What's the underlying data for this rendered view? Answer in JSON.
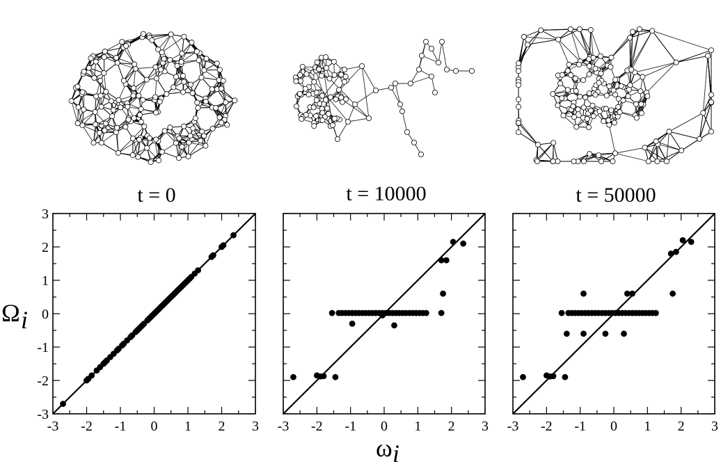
{
  "panels": [
    {
      "title": "t = 0"
    },
    {
      "title": "t = 10000"
    },
    {
      "title": "t = 50000"
    }
  ],
  "axes": {
    "xlabel": "ω_i",
    "ylabel": "Ω_i",
    "xticks": [
      "-3",
      "-2",
      "-1",
      "0",
      "1",
      "2",
      "3"
    ],
    "yticks": [
      "-3",
      "-2",
      "-1",
      "0",
      "1",
      "2",
      "3"
    ]
  },
  "colors": {
    "marker": "#000000",
    "node_fill": "#ffffff",
    "edge": "#000000",
    "background": "#ffffff"
  },
  "chart_data": [
    {
      "type": "scatter",
      "title": "t = 0",
      "xlabel": "ω_i",
      "ylabel": "Ω_i",
      "xlim": [
        -3,
        3
      ],
      "ylim": [
        -3,
        3
      ],
      "grid": false,
      "diagonal": "y = x",
      "series": [
        {
          "x": [
            -2.7,
            -2.0,
            -1.95,
            -1.85,
            -1.7,
            -1.6,
            -1.5,
            -1.45,
            -1.4,
            -1.3,
            -1.2,
            -1.1,
            -1.05,
            -0.95,
            -0.9,
            -0.8,
            -0.7,
            -0.65,
            -0.55,
            -0.5,
            -0.45,
            -0.4,
            -0.35,
            -0.3,
            -0.2,
            -0.15,
            -0.1,
            -0.05,
            0.0,
            0.05,
            0.1,
            0.15,
            0.2,
            0.25,
            0.3,
            0.35,
            0.4,
            0.45,
            0.5,
            0.55,
            0.6,
            0.65,
            0.7,
            0.75,
            0.8,
            0.85,
            0.9,
            0.95,
            1.0,
            1.05,
            1.1,
            1.2,
            1.3,
            1.7,
            1.75,
            2.0,
            2.05,
            2.35
          ],
          "y": [
            -2.7,
            -2.0,
            -1.95,
            -1.85,
            -1.7,
            -1.6,
            -1.5,
            -1.45,
            -1.4,
            -1.3,
            -1.2,
            -1.1,
            -1.05,
            -0.95,
            -0.9,
            -0.8,
            -0.7,
            -0.65,
            -0.55,
            -0.5,
            -0.45,
            -0.4,
            -0.35,
            -0.3,
            -0.2,
            -0.15,
            -0.1,
            -0.05,
            0.0,
            0.05,
            0.1,
            0.15,
            0.2,
            0.25,
            0.3,
            0.35,
            0.4,
            0.45,
            0.5,
            0.55,
            0.6,
            0.65,
            0.7,
            0.75,
            0.8,
            0.85,
            0.9,
            0.95,
            1.0,
            1.05,
            1.1,
            1.2,
            1.3,
            1.7,
            1.75,
            2.0,
            2.05,
            2.35
          ]
        }
      ]
    },
    {
      "type": "scatter",
      "title": "t = 10000",
      "xlabel": "ω_i",
      "ylabel": "Ω_i",
      "xlim": [
        -3,
        3
      ],
      "ylim": [
        -3,
        3
      ],
      "grid": false,
      "diagonal": "y = x",
      "series": [
        {
          "x": [
            -2.7,
            -2.0,
            -1.9,
            -1.8,
            -1.45,
            -1.55,
            -1.35,
            -1.25,
            -1.15,
            -1.05,
            -0.95,
            -0.85,
            -0.75,
            -0.65,
            -0.55,
            -0.45,
            -0.35,
            -0.25,
            -0.15,
            -0.05,
            0.05,
            0.15,
            0.25,
            0.35,
            0.45,
            0.55,
            0.65,
            0.75,
            0.85,
            0.95,
            1.05,
            1.15,
            1.25,
            -0.95,
            0.3,
            -0.05,
            1.7,
            1.75,
            1.85,
            1.7,
            2.05,
            2.35
          ],
          "y": [
            -1.9,
            -1.85,
            -1.88,
            -1.87,
            -1.9,
            0.02,
            0.02,
            0.02,
            0.02,
            0.02,
            0.02,
            0.02,
            0.02,
            0.02,
            0.02,
            0.02,
            0.02,
            0.02,
            0.02,
            0.02,
            0.02,
            0.02,
            0.02,
            0.02,
            0.02,
            0.02,
            0.02,
            0.02,
            0.02,
            0.02,
            0.02,
            0.02,
            0.02,
            -0.3,
            -0.35,
            -0.05,
            1.6,
            0.6,
            1.6,
            0.02,
            2.15,
            2.1
          ]
        }
      ]
    },
    {
      "type": "scatter",
      "title": "t = 50000",
      "xlabel": "ω_i",
      "ylabel": "Ω_i",
      "xlim": [
        -3,
        3
      ],
      "ylim": [
        -3,
        3
      ],
      "grid": false,
      "diagonal": "y = x",
      "series": [
        {
          "x": [
            -2.7,
            -2.0,
            -1.9,
            -1.8,
            -1.45,
            -1.55,
            -1.35,
            -1.25,
            -1.15,
            -1.05,
            -0.95,
            -0.85,
            -0.75,
            -0.65,
            -0.55,
            -0.45,
            -0.35,
            -0.25,
            -0.15,
            -0.05,
            0.05,
            0.15,
            0.25,
            0.35,
            0.45,
            0.55,
            0.65,
            0.75,
            0.85,
            0.95,
            1.05,
            1.15,
            1.25,
            -0.9,
            -1.4,
            -0.9,
            -0.25,
            0.3,
            0.4,
            0.55,
            1.7,
            1.75,
            1.85,
            2.05,
            2.3
          ],
          "y": [
            -1.9,
            -1.85,
            -1.88,
            -1.87,
            -1.9,
            0.02,
            0.02,
            0.02,
            0.02,
            0.02,
            0.02,
            0.02,
            0.02,
            0.02,
            0.02,
            0.02,
            0.02,
            0.02,
            0.02,
            0.02,
            0.02,
            0.02,
            0.02,
            0.02,
            0.02,
            0.02,
            0.02,
            0.02,
            0.02,
            0.02,
            0.02,
            0.02,
            0.02,
            0.6,
            -0.6,
            -0.6,
            -0.6,
            -0.6,
            0.6,
            0.6,
            1.8,
            0.6,
            1.85,
            2.2,
            2.15
          ]
        }
      ]
    }
  ]
}
